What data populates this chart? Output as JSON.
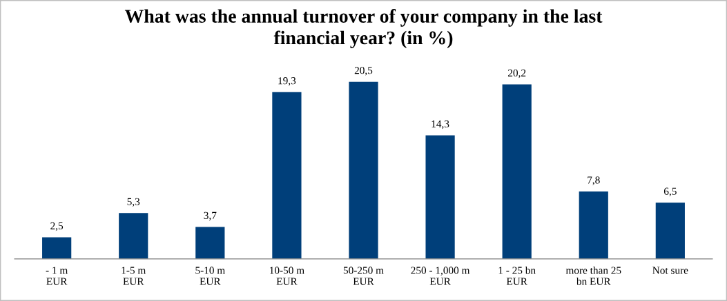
{
  "chart_data": {
    "type": "bar",
    "title": "What was the annual turnover of your company in the last\nfinancial year? (in %)",
    "categories": [
      "- 1 m\nEUR",
      "1-5 m\nEUR",
      "5-10 m\nEUR",
      "10-50 m\nEUR",
      "50-250 m\nEUR",
      "250 - 1,000 m\nEUR",
      "1 - 25 bn\nEUR",
      "more than 25\nbn EUR",
      "Not sure"
    ],
    "values": [
      2.5,
      5.3,
      3.7,
      19.3,
      20.5,
      14.3,
      20.2,
      7.8,
      6.5
    ],
    "value_labels": [
      "2,5",
      "5,3",
      "3,7",
      "19,3",
      "20,5",
      "14,3",
      "20,2",
      "7,8",
      "6,5"
    ],
    "color": "#003f7a",
    "grid": false,
    "legend": false
  }
}
